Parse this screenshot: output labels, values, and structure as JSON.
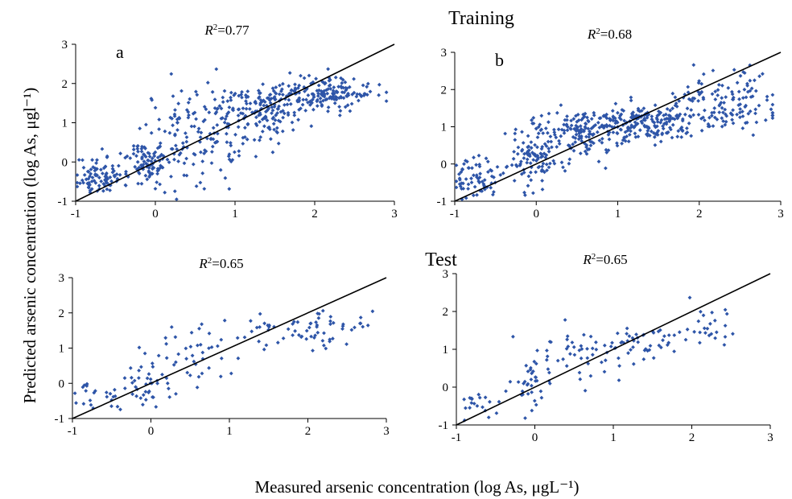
{
  "figure": {
    "section_training": "Training",
    "section_test": "Test",
    "xlabel": "Measured arsenic concentration (log As, μgL⁻¹)",
    "ylabel": "Predicted arsenic concentration (log As, μgl⁻¹)"
  },
  "colors": {
    "points": "#2e55a8",
    "line": "#000000"
  },
  "chart_data": [
    {
      "type": "scatter",
      "panel": "training-a",
      "letter": "a",
      "r2_label": "=0.77",
      "xlim": [
        -1,
        3
      ],
      "ylim": [
        -1,
        3
      ],
      "xticks": [
        "-1",
        "0",
        "1",
        "2",
        "3"
      ],
      "yticks": [
        "-1",
        "0",
        "1",
        "2",
        "3"
      ],
      "reference_line": [
        [
          -1,
          -1
        ],
        [
          3,
          3
        ]
      ],
      "point_count": 650,
      "seed": 11,
      "clusters": [
        {
          "cx": -0.7,
          "cy": -0.35,
          "sx": 0.15,
          "sy": 0.25,
          "n": 90
        },
        {
          "cx": -0.1,
          "cy": -0.05,
          "sx": 0.12,
          "sy": 0.3,
          "n": 80
        },
        {
          "cx": 0.5,
          "cy": 0.7,
          "sx": 0.35,
          "sy": 0.6,
          "n": 150
        },
        {
          "cx": 1.3,
          "cy": 1.35,
          "sx": 0.3,
          "sy": 0.35,
          "n": 150
        },
        {
          "cx": 2.1,
          "cy": 1.75,
          "sx": 0.3,
          "sy": 0.2,
          "n": 180
        }
      ]
    },
    {
      "type": "scatter",
      "panel": "training-b",
      "letter": "b",
      "r2_label": "=0.68",
      "xlim": [
        -1,
        3
      ],
      "ylim": [
        -1,
        3
      ],
      "xticks": [
        "-1",
        "0",
        "1",
        "2",
        "3"
      ],
      "yticks": [
        "-1",
        "0",
        "1",
        "2",
        "3"
      ],
      "reference_line": [
        [
          -1,
          -1
        ],
        [
          3,
          3
        ]
      ],
      "point_count": 650,
      "seed": 23,
      "clusters": [
        {
          "cx": -0.75,
          "cy": -0.4,
          "sx": 0.15,
          "sy": 0.25,
          "n": 70
        },
        {
          "cx": -0.05,
          "cy": 0.1,
          "sx": 0.15,
          "sy": 0.35,
          "n": 90
        },
        {
          "cx": 0.5,
          "cy": 0.85,
          "sx": 0.3,
          "sy": 0.35,
          "n": 160
        },
        {
          "cx": 1.3,
          "cy": 1.1,
          "sx": 0.35,
          "sy": 0.25,
          "n": 200
        },
        {
          "cx": 2.3,
          "cy": 1.6,
          "sx": 0.35,
          "sy": 0.4,
          "n": 130
        }
      ]
    },
    {
      "type": "scatter",
      "panel": "test-a",
      "letter": "",
      "r2_label": "=0.65",
      "xlim": [
        -1,
        3
      ],
      "ylim": [
        -1,
        3
      ],
      "xticks": [
        "-1",
        "0",
        "1",
        "2",
        "3"
      ],
      "yticks": [
        "-1",
        "0",
        "1",
        "2",
        "3"
      ],
      "reference_line": [
        [
          -1,
          -1
        ],
        [
          3,
          3
        ]
      ],
      "point_count": 170,
      "seed": 37,
      "clusters": [
        {
          "cx": -0.65,
          "cy": -0.4,
          "sx": 0.15,
          "sy": 0.2,
          "n": 25
        },
        {
          "cx": -0.05,
          "cy": 0.0,
          "sx": 0.12,
          "sy": 0.35,
          "n": 35
        },
        {
          "cx": 0.5,
          "cy": 0.8,
          "sx": 0.35,
          "sy": 0.5,
          "n": 40
        },
        {
          "cx": 1.6,
          "cy": 1.5,
          "sx": 0.4,
          "sy": 0.3,
          "n": 45
        },
        {
          "cx": 2.3,
          "cy": 1.6,
          "sx": 0.25,
          "sy": 0.25,
          "n": 25
        }
      ]
    },
    {
      "type": "scatter",
      "panel": "test-b",
      "letter": "",
      "r2_label": "=0.65",
      "xlim": [
        -1,
        3
      ],
      "ylim": [
        -1,
        3
      ],
      "xticks": [
        "-1",
        "0",
        "1",
        "2",
        "3"
      ],
      "yticks": [
        "-1",
        "0",
        "1",
        "2",
        "3"
      ],
      "reference_line": [
        [
          -1,
          -1
        ],
        [
          3,
          3
        ]
      ],
      "point_count": 170,
      "seed": 53,
      "clusters": [
        {
          "cx": -0.7,
          "cy": -0.4,
          "sx": 0.15,
          "sy": 0.2,
          "n": 20
        },
        {
          "cx": -0.05,
          "cy": 0.1,
          "sx": 0.12,
          "sy": 0.4,
          "n": 35
        },
        {
          "cx": 0.6,
          "cy": 0.9,
          "sx": 0.35,
          "sy": 0.35,
          "n": 45
        },
        {
          "cx": 1.4,
          "cy": 1.1,
          "sx": 0.3,
          "sy": 0.3,
          "n": 45
        },
        {
          "cx": 2.2,
          "cy": 1.5,
          "sx": 0.25,
          "sy": 0.35,
          "n": 25
        }
      ]
    }
  ]
}
